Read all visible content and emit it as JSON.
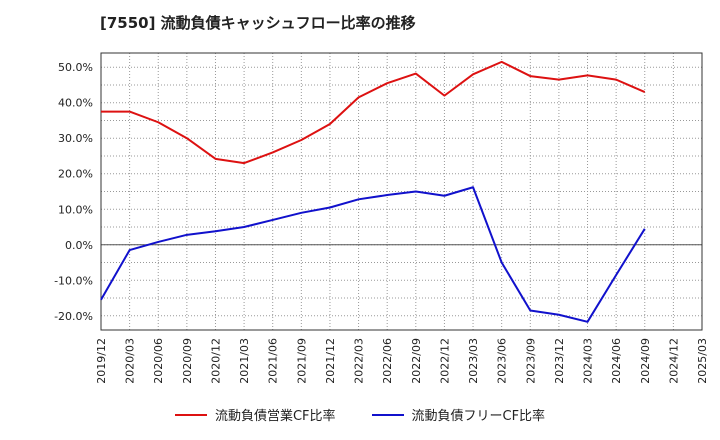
{
  "chart_data": {
    "type": "line",
    "title": "[7550]  流動負債キャッシュフロー比率の推移",
    "xlabel": "",
    "ylabel": "",
    "x": [
      "2019/12",
      "2020/03",
      "2020/06",
      "2020/09",
      "2020/12",
      "2021/03",
      "2021/06",
      "2021/09",
      "2021/12",
      "2022/03",
      "2022/06",
      "2022/09",
      "2022/12",
      "2023/03",
      "2023/06",
      "2023/09",
      "2023/12",
      "2024/03",
      "2024/06",
      "2024/09",
      "2024/12",
      "2025/03"
    ],
    "ylim": [
      -24,
      54
    ],
    "yticks": [
      -20,
      -10,
      0,
      10,
      20,
      30,
      40,
      50
    ],
    "ytick_labels": [
      "-20.0%",
      "-10.0%",
      "0.0%",
      "10.0%",
      "20.0%",
      "30.0%",
      "40.0%",
      "50.0%"
    ],
    "grid": true,
    "legend_position": "bottom",
    "series": [
      {
        "name": "流動負債営業CF比率",
        "color": "#dd1111",
        "values": [
          37.5,
          37.5,
          34.5,
          30.0,
          24.2,
          23.0,
          26.0,
          29.5,
          34.0,
          41.5,
          45.5,
          48.2,
          42.0,
          48.0,
          51.5,
          47.5,
          46.5,
          47.7,
          46.5,
          43.0,
          null,
          null
        ]
      },
      {
        "name": "流動負債フリーCF比率",
        "color": "#1111cc",
        "values": [
          -15.5,
          -1.5,
          0.8,
          2.8,
          3.8,
          5.0,
          7.0,
          9.0,
          10.5,
          12.8,
          14.0,
          15.0,
          13.8,
          16.2,
          -5.0,
          -18.5,
          -19.7,
          -21.7,
          -8.5,
          4.5,
          null,
          null
        ]
      }
    ]
  }
}
